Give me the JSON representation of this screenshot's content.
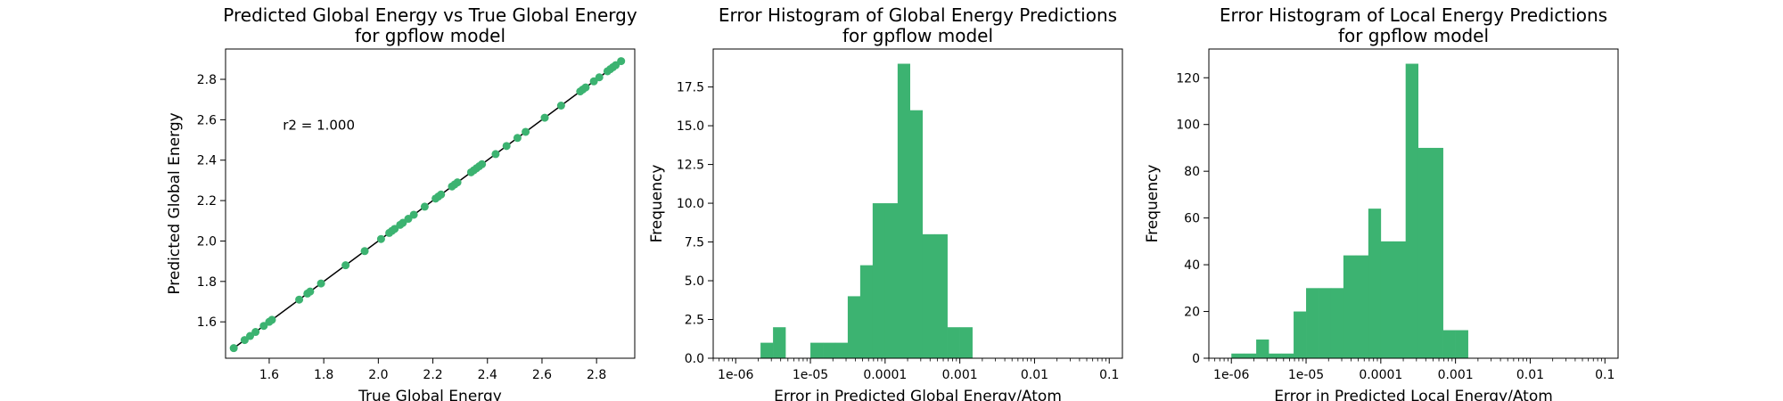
{
  "chart_data": [
    {
      "type": "scatter",
      "title": "Predicted Global Energy vs True Global Energy\nfor gpflow model",
      "xlabel": "True Global Energy",
      "ylabel": "Predicted Global Energy",
      "xlim": [
        1.44,
        2.94
      ],
      "ylim": [
        1.42,
        2.95
      ],
      "xticks": [
        1.6,
        1.8,
        2.0,
        2.2,
        2.4,
        2.6,
        2.8
      ],
      "yticks": [
        1.6,
        1.8,
        2.0,
        2.2,
        2.4,
        2.6,
        2.8
      ],
      "annotation": "r2 = 1.000",
      "color": "#3cb371",
      "line_color": "#000000",
      "identity_line": [
        1.47,
        2.89
      ],
      "points": [
        1.47,
        1.51,
        1.53,
        1.55,
        1.58,
        1.6,
        1.61,
        1.71,
        1.74,
        1.75,
        1.79,
        1.88,
        1.95,
        2.01,
        2.04,
        2.05,
        2.06,
        2.08,
        2.09,
        2.11,
        2.13,
        2.17,
        2.21,
        2.22,
        2.23,
        2.27,
        2.28,
        2.29,
        2.34,
        2.35,
        2.36,
        2.37,
        2.38,
        2.43,
        2.47,
        2.51,
        2.54,
        2.61,
        2.67,
        2.74,
        2.75,
        2.76,
        2.79,
        2.81,
        2.84,
        2.85,
        2.86,
        2.87,
        2.89
      ]
    },
    {
      "type": "histogram",
      "title": "Error Histogram of Global Energy Predictions\nfor gpflow model",
      "xlabel": "Error in Predicted Global Energy/Atom",
      "ylabel": "Frequency",
      "xscale": "log",
      "xlim": [
        5e-07,
        0.15
      ],
      "ylim": [
        0,
        19.95
      ],
      "xticks": [
        {
          "v": 1e-06,
          "label": "1e-06"
        },
        {
          "v": 1e-05,
          "label": "1e-05"
        },
        {
          "v": 0.0001,
          "label": "0.0001"
        },
        {
          "v": 0.001,
          "label": "0.001"
        },
        {
          "v": 0.01,
          "label": "0.01"
        },
        {
          "v": 0.1,
          "label": "0.1"
        }
      ],
      "yticks": [
        {
          "v": 0,
          "label": "0.0"
        },
        {
          "v": 2.5,
          "label": "2.5"
        },
        {
          "v": 5,
          "label": "5.0"
        },
        {
          "v": 7.5,
          "label": "7.5"
        },
        {
          "v": 10,
          "label": "10.0"
        },
        {
          "v": 12.5,
          "label": "12.5"
        },
        {
          "v": 15,
          "label": "15.0"
        },
        {
          "v": 17.5,
          "label": "17.5"
        }
      ],
      "color": "#3cb371",
      "bins": [
        {
          "x0": 2.15e-06,
          "x1": 3.16e-06,
          "value": 1
        },
        {
          "x0": 3.16e-06,
          "x1": 4.64e-06,
          "value": 2
        },
        {
          "x0": 1e-05,
          "x1": 1.47e-05,
          "value": 1
        },
        {
          "x0": 1.47e-05,
          "x1": 2.15e-05,
          "value": 1
        },
        {
          "x0": 2.15e-05,
          "x1": 3.16e-05,
          "value": 1
        },
        {
          "x0": 3.16e-05,
          "x1": 4.64e-05,
          "value": 4
        },
        {
          "x0": 4.64e-05,
          "x1": 6.81e-05,
          "value": 6
        },
        {
          "x0": 6.81e-05,
          "x1": 0.0001,
          "value": 10
        },
        {
          "x0": 0.0001,
          "x1": 0.000147,
          "value": 10
        },
        {
          "x0": 0.000147,
          "x1": 0.000215,
          "value": 19
        },
        {
          "x0": 0.000215,
          "x1": 0.000316,
          "value": 16
        },
        {
          "x0": 0.000316,
          "x1": 0.000464,
          "value": 8
        },
        {
          "x0": 0.000464,
          "x1": 0.000681,
          "value": 8
        },
        {
          "x0": 0.000681,
          "x1": 0.001,
          "value": 2
        },
        {
          "x0": 0.001,
          "x1": 0.00147,
          "value": 2
        }
      ]
    },
    {
      "type": "histogram",
      "title": "Error Histogram of Local Energy Predictions\nfor gpflow model",
      "xlabel": "Error in Predicted Local Energy/Atom",
      "ylabel": "Frequency",
      "xscale": "log",
      "xlim": [
        5e-07,
        0.15
      ],
      "ylim": [
        0,
        132.3
      ],
      "xticks": [
        {
          "v": 1e-06,
          "label": "1e-06"
        },
        {
          "v": 1e-05,
          "label": "1e-05"
        },
        {
          "v": 0.0001,
          "label": "0.0001"
        },
        {
          "v": 0.001,
          "label": "0.001"
        },
        {
          "v": 0.01,
          "label": "0.01"
        },
        {
          "v": 0.1,
          "label": "0.1"
        }
      ],
      "yticks": [
        {
          "v": 0,
          "label": "0"
        },
        {
          "v": 20,
          "label": "20"
        },
        {
          "v": 40,
          "label": "40"
        },
        {
          "v": 60,
          "label": "60"
        },
        {
          "v": 80,
          "label": "80"
        },
        {
          "v": 100,
          "label": "100"
        },
        {
          "v": 120,
          "label": "120"
        }
      ],
      "color": "#3cb371",
      "bins": [
        {
          "x0": 1e-06,
          "x1": 1.47e-06,
          "value": 2
        },
        {
          "x0": 1.47e-06,
          "x1": 2.15e-06,
          "value": 2
        },
        {
          "x0": 2.15e-06,
          "x1": 3.16e-06,
          "value": 8
        },
        {
          "x0": 3.16e-06,
          "x1": 4.64e-06,
          "value": 2
        },
        {
          "x0": 4.64e-06,
          "x1": 6.81e-06,
          "value": 2
        },
        {
          "x0": 6.81e-06,
          "x1": 1e-05,
          "value": 20
        },
        {
          "x0": 1e-05,
          "x1": 1.47e-05,
          "value": 30
        },
        {
          "x0": 1.47e-05,
          "x1": 2.15e-05,
          "value": 30
        },
        {
          "x0": 2.15e-05,
          "x1": 3.16e-05,
          "value": 30
        },
        {
          "x0": 3.16e-05,
          "x1": 4.64e-05,
          "value": 44
        },
        {
          "x0": 4.64e-05,
          "x1": 6.81e-05,
          "value": 44
        },
        {
          "x0": 6.81e-05,
          "x1": 0.0001,
          "value": 64
        },
        {
          "x0": 0.0001,
          "x1": 0.000147,
          "value": 50
        },
        {
          "x0": 0.000147,
          "x1": 0.000215,
          "value": 50
        },
        {
          "x0": 0.000215,
          "x1": 0.000316,
          "value": 126
        },
        {
          "x0": 0.000316,
          "x1": 0.000464,
          "value": 90
        },
        {
          "x0": 0.000464,
          "x1": 0.000681,
          "value": 90
        },
        {
          "x0": 0.000681,
          "x1": 0.001,
          "value": 12
        },
        {
          "x0": 0.001,
          "x1": 0.00147,
          "value": 12
        }
      ]
    }
  ]
}
